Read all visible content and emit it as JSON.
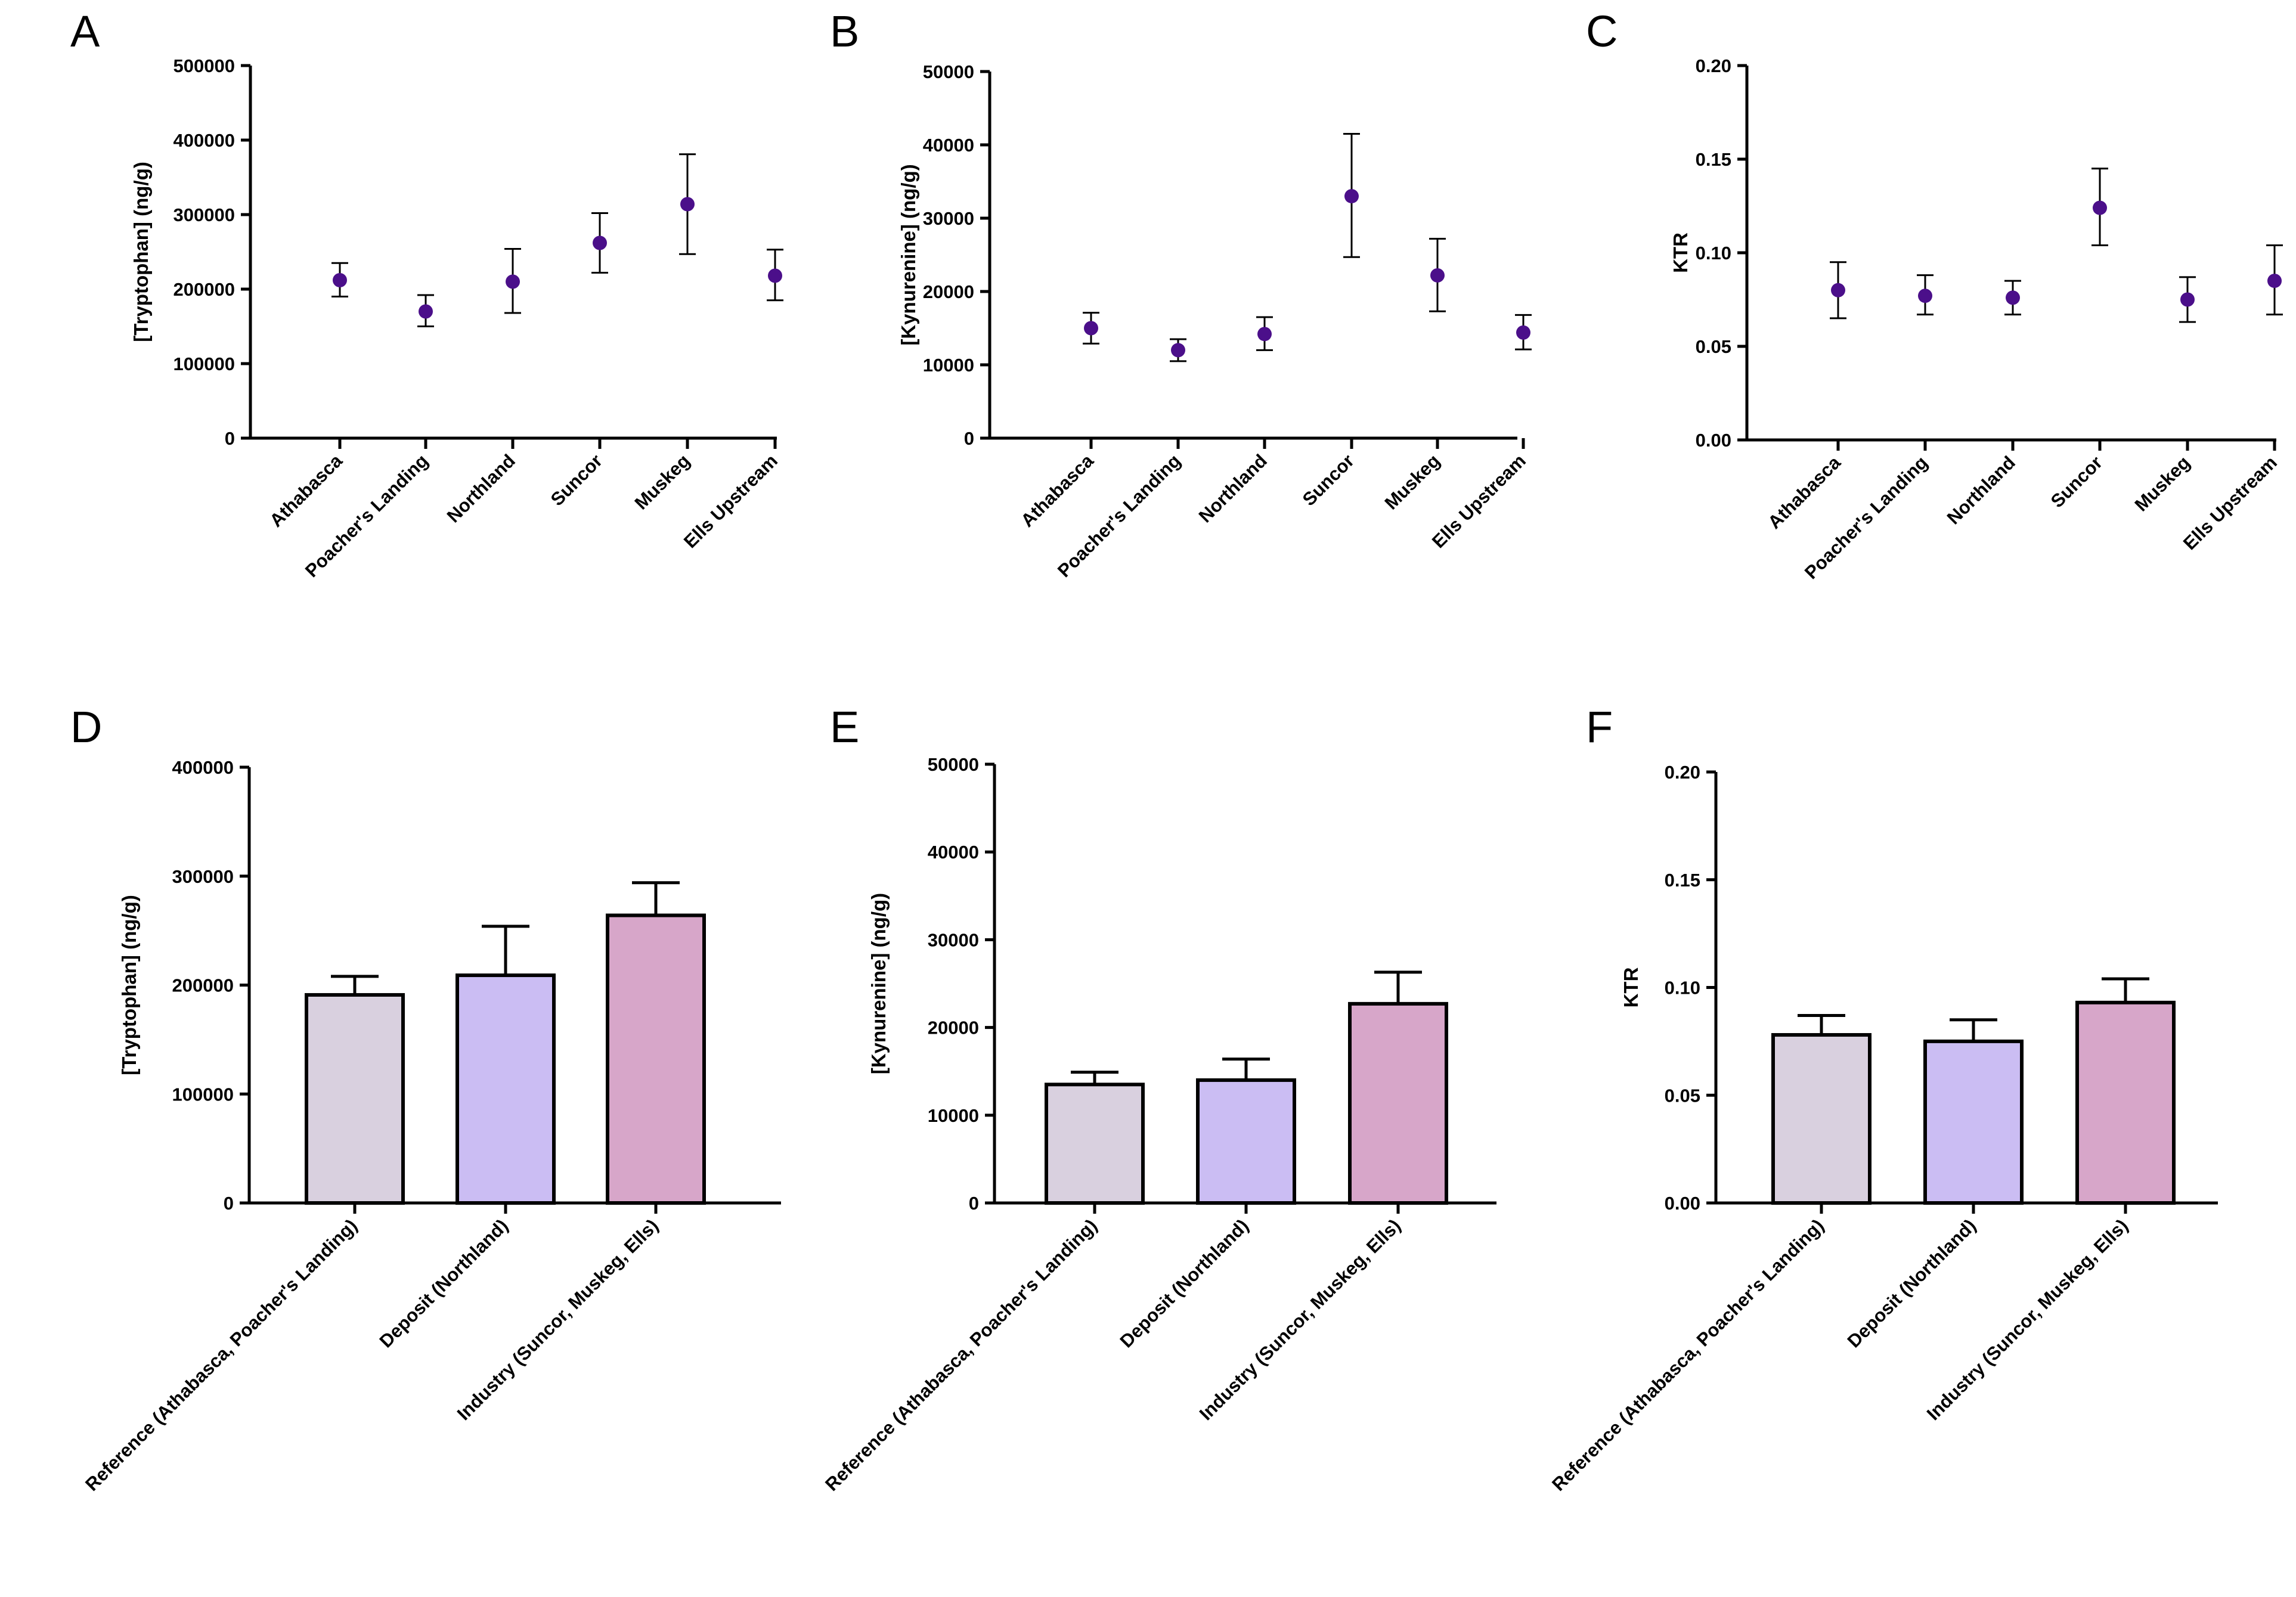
{
  "chart_data": [
    {
      "panel": "A",
      "type": "scatter",
      "categories": [
        "Athabasca",
        "Poacher's Landing",
        "Northland",
        "Suncor",
        "Muskeg",
        "Ells Upstream"
      ],
      "values": [
        212000,
        170000,
        210000,
        262000,
        314000,
        218000
      ],
      "err_low": [
        190000,
        150000,
        168000,
        222000,
        247000,
        185000
      ],
      "err_high": [
        235000,
        192000,
        254000,
        302000,
        381000,
        253000
      ],
      "ylabel": "[Tryptophan] (ng/g)",
      "ylim": [
        0,
        500000
      ],
      "yticks": [
        "0",
        "100000",
        "200000",
        "300000",
        "400000",
        "500000"
      ],
      "colors": {
        "marker": "#4b0f8a",
        "error": "#000000"
      }
    },
    {
      "panel": "B",
      "type": "scatter",
      "categories": [
        "Athabasca",
        "Poacher's Landing",
        "Northland",
        "Suncor",
        "Muskeg",
        "Ells Upstream"
      ],
      "values": [
        15000,
        12000,
        14200,
        33000,
        22200,
        14400
      ],
      "err_low": [
        12900,
        10500,
        12000,
        24700,
        17300,
        12100
      ],
      "err_high": [
        17100,
        13500,
        16500,
        41500,
        27200,
        16800
      ],
      "ylabel": "[Kynurenine] (ng/g)",
      "ylim": [
        0,
        50000
      ],
      "yticks": [
        "0",
        "10000",
        "20000",
        "30000",
        "40000",
        "50000"
      ],
      "colors": {
        "marker": "#4b0f8a",
        "error": "#000000"
      }
    },
    {
      "panel": "C",
      "type": "scatter",
      "categories": [
        "Athabasca",
        "Poacher's Landing",
        "Northland",
        "Suncor",
        "Muskeg",
        "Ells Upstream"
      ],
      "values": [
        0.08,
        0.077,
        0.076,
        0.124,
        0.075,
        0.085
      ],
      "err_low": [
        0.065,
        0.067,
        0.067,
        0.104,
        0.063,
        0.067
      ],
      "err_high": [
        0.095,
        0.088,
        0.085,
        0.145,
        0.087,
        0.104
      ],
      "ylabel": "KTR",
      "ylim": [
        0,
        0.2
      ],
      "yticks": [
        "0.00",
        "0.05",
        "0.10",
        "0.15",
        "0.20"
      ],
      "colors": {
        "marker": "#4b0f8a",
        "error": "#000000"
      }
    },
    {
      "panel": "D",
      "type": "bar",
      "categories": [
        "Reference (Athabasca, Poacher's Landing)",
        "Deposit (Northland)",
        "Industry (Suncor, Muskeg, Ells)"
      ],
      "values": [
        191000,
        209000,
        264000
      ],
      "err_high": [
        208000,
        254000,
        294000
      ],
      "ylabel": "[Tryptophan] (ng/g)",
      "ylim": [
        0,
        400000
      ],
      "yticks": [
        "0",
        "100000",
        "200000",
        "300000",
        "400000"
      ],
      "colors": {
        "bars": [
          "#d9d0df",
          "#cbbdf3",
          "#d7a6c9"
        ]
      }
    },
    {
      "panel": "E",
      "type": "bar",
      "categories": [
        "Reference (Athabasca, Poacher's Landing)",
        "Deposit (Northland)",
        "Industry (Suncor, Muskeg, Ells)"
      ],
      "values": [
        13500,
        14000,
        22700
      ],
      "err_high": [
        14900,
        16400,
        26300
      ],
      "ylabel": "[Kynurenine] (ng/g)",
      "ylim": [
        0,
        50000
      ],
      "yticks": [
        "0",
        "10000",
        "20000",
        "30000",
        "40000",
        "50000"
      ],
      "colors": {
        "bars": [
          "#d9d0df",
          "#cbbdf3",
          "#d7a6c9"
        ]
      }
    },
    {
      "panel": "F",
      "type": "bar",
      "categories": [
        "Reference (Athabasca, Poacher's Landing)",
        "Deposit (Northland)",
        "Industry (Suncor, Muskeg, Ells)"
      ],
      "values": [
        0.078,
        0.075,
        0.093
      ],
      "err_high": [
        0.087,
        0.085,
        0.104
      ],
      "ylabel": "KTR",
      "ylim": [
        0,
        0.2
      ],
      "yticks": [
        "0.00",
        "0.05",
        "0.10",
        "0.15",
        "0.20"
      ],
      "colors": {
        "bars": [
          "#d9d0df",
          "#cbbdf3",
          "#d7a6c9"
        ]
      }
    }
  ]
}
